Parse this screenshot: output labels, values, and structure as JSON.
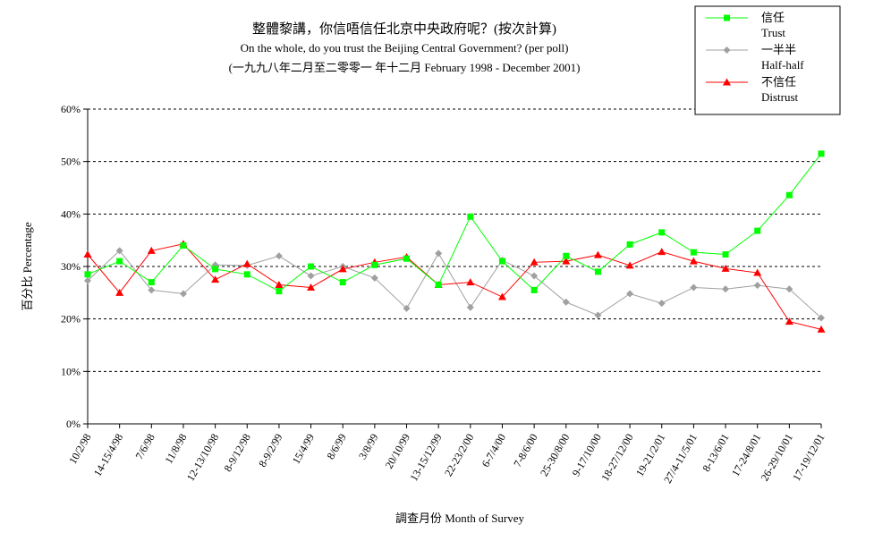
{
  "chart_data": {
    "type": "line",
    "title": "整體黎講，你信唔信任北京中央政府呢？(按次計算)",
    "subtitle": "On the whole, do you trust the Beijing Central Government?  (per poll)",
    "subtitle2": "(一九九八年二月至二零零一 年十二月 February 1998 -  December 2001)",
    "xlabel": "調查月份 Month of Survey",
    "ylabel": "百分比 Percentage",
    "ylim": [
      0,
      60
    ],
    "yticks": [
      0,
      10,
      20,
      30,
      40,
      50,
      60
    ],
    "ytick_labels": [
      "0%",
      "10%",
      "20%",
      "30%",
      "40%",
      "50%",
      "60%"
    ],
    "grid": "horizontal dashed",
    "legend_position": "top-right",
    "categories": [
      "10/2/98",
      "14-15/4/98",
      "7/6/98",
      "11/8/98",
      "12-13/10/98",
      "8-9/12/98",
      "8-9/2/99",
      "15/4/99",
      "8/6/99",
      "3/8/99",
      "20/10/99",
      "13-15/12/99",
      "22-23/2/00",
      "6-7/4/00",
      "7-8/6/00",
      "25-30/8/00",
      "9-17/10/00",
      "18-27/12/00",
      "19-21/2/01",
      "27/4-11/5/01",
      "8-13/6/01",
      "17-24/8/01",
      "26-29/10/01",
      "17-19/12/01"
    ],
    "series": [
      {
        "name": "信任",
        "name2": "Trust",
        "color": "#00ff00",
        "marker": "square",
        "values": [
          28.5,
          31,
          27,
          34,
          29.5,
          28.5,
          25.3,
          30,
          27,
          30.3,
          31.5,
          26.5,
          39.5,
          31,
          25.5,
          32,
          29,
          34.2,
          36.5,
          32.7,
          32.3,
          36.8,
          43.6,
          51.5
        ]
      },
      {
        "name": "一半半",
        "name2": "Half-half",
        "color": "#a0a0a0",
        "marker": "diamond",
        "values": [
          27.3,
          33,
          25.5,
          24.8,
          30.3,
          30.2,
          32,
          28.2,
          30,
          27.8,
          22,
          32.5,
          22.2,
          31.2,
          28.2,
          23.2,
          20.7,
          24.8,
          23,
          26,
          25.7,
          26.4,
          25.7,
          20.2
        ]
      },
      {
        "name": "不信任",
        "name2": "Distrust",
        "color": "#ff0000",
        "marker": "triangle",
        "values": [
          32.3,
          25,
          33,
          34.3,
          27.5,
          30.5,
          26.5,
          26,
          29.5,
          30.8,
          31.8,
          26.5,
          27,
          24.2,
          30.8,
          31,
          32.2,
          30.2,
          32.8,
          31,
          29.6,
          28.8,
          19.5,
          18
        ]
      }
    ]
  }
}
